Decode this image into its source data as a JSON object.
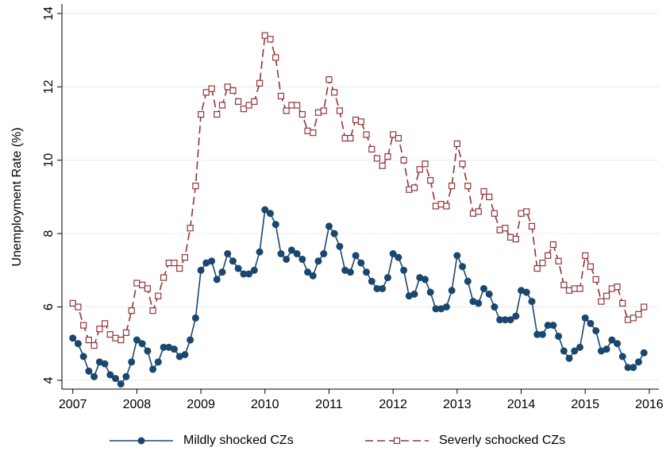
{
  "chart_data": {
    "type": "line",
    "y_label": "Unemployment Rate (%)",
    "x": [
      2007,
      2007.083,
      2007.167,
      2007.25,
      2007.333,
      2007.417,
      2007.5,
      2007.583,
      2007.667,
      2007.75,
      2007.833,
      2007.917,
      2008,
      2008.083,
      2008.167,
      2008.25,
      2008.333,
      2008.417,
      2008.5,
      2008.583,
      2008.667,
      2008.75,
      2008.833,
      2008.917,
      2009,
      2009.083,
      2009.167,
      2009.25,
      2009.333,
      2009.417,
      2009.5,
      2009.583,
      2009.667,
      2009.75,
      2009.833,
      2009.917,
      2010,
      2010.083,
      2010.167,
      2010.25,
      2010.333,
      2010.417,
      2010.5,
      2010.583,
      2010.667,
      2010.75,
      2010.833,
      2010.917,
      2011,
      2011.083,
      2011.167,
      2011.25,
      2011.333,
      2011.417,
      2011.5,
      2011.583,
      2011.667,
      2011.75,
      2011.833,
      2011.917,
      2012,
      2012.083,
      2012.167,
      2012.25,
      2012.333,
      2012.417,
      2012.5,
      2012.583,
      2012.667,
      2012.75,
      2012.833,
      2012.917,
      2013,
      2013.083,
      2013.167,
      2013.25,
      2013.333,
      2013.417,
      2013.5,
      2013.583,
      2013.667,
      2013.75,
      2013.833,
      2013.917,
      2014,
      2014.083,
      2014.167,
      2014.25,
      2014.333,
      2014.417,
      2014.5,
      2014.583,
      2014.667,
      2014.75,
      2014.833,
      2014.917,
      2015,
      2015.083,
      2015.167,
      2015.25,
      2015.333,
      2015.417,
      2015.5,
      2015.583,
      2015.667,
      2015.75,
      2015.833,
      2015.917
    ],
    "series": [
      {
        "name": "Mildly shocked CZs",
        "color": "#1a476f",
        "marker": "circle",
        "dash": false,
        "values": [
          5.15,
          5.0,
          4.65,
          4.25,
          4.1,
          4.5,
          4.45,
          4.15,
          4.05,
          3.9,
          4.1,
          4.5,
          5.1,
          5.0,
          4.8,
          4.3,
          4.5,
          4.9,
          4.9,
          4.85,
          4.65,
          4.7,
          5.1,
          5.7,
          7.0,
          7.2,
          7.25,
          6.75,
          6.95,
          7.45,
          7.25,
          7.05,
          6.9,
          6.9,
          7.0,
          7.5,
          8.65,
          8.55,
          8.25,
          7.45,
          7.3,
          7.55,
          7.45,
          7.3,
          6.95,
          6.85,
          7.25,
          7.45,
          8.2,
          8.0,
          7.65,
          7.0,
          6.95,
          7.4,
          7.2,
          6.95,
          6.7,
          6.5,
          6.5,
          6.8,
          7.45,
          7.35,
          7.0,
          6.3,
          6.35,
          6.8,
          6.75,
          6.4,
          5.95,
          5.95,
          6.0,
          6.45,
          7.4,
          7.1,
          6.7,
          6.15,
          6.1,
          6.5,
          6.35,
          6.0,
          5.65,
          5.65,
          5.65,
          5.75,
          6.45,
          6.4,
          6.15,
          5.25,
          5.25,
          5.5,
          5.5,
          5.2,
          4.8,
          4.6,
          4.8,
          4.9,
          5.7,
          5.55,
          5.35,
          4.8,
          4.85,
          5.1,
          5.0,
          4.65,
          4.35,
          4.35,
          4.5,
          4.75
        ]
      },
      {
        "name": "Severly schocked CZs",
        "color": "#90353b",
        "marker": "square",
        "dash": true,
        "values": [
          6.1,
          6.0,
          5.5,
          5.1,
          4.95,
          5.4,
          5.55,
          5.25,
          5.15,
          5.1,
          5.3,
          5.9,
          6.65,
          6.6,
          6.5,
          5.9,
          6.3,
          6.8,
          7.2,
          7.2,
          7.05,
          7.35,
          8.15,
          9.3,
          11.25,
          11.85,
          11.95,
          11.25,
          11.5,
          12.0,
          11.9,
          11.6,
          11.4,
          11.5,
          11.6,
          12.1,
          13.4,
          13.3,
          12.8,
          11.75,
          11.35,
          11.5,
          11.5,
          11.25,
          10.8,
          10.75,
          11.3,
          11.35,
          12.2,
          11.85,
          11.35,
          10.6,
          10.6,
          11.1,
          11.05,
          10.7,
          10.3,
          10.05,
          9.85,
          10.1,
          10.7,
          10.6,
          10.0,
          9.2,
          9.25,
          9.75,
          9.9,
          9.45,
          8.75,
          8.8,
          8.75,
          9.3,
          10.45,
          9.9,
          9.3,
          8.55,
          8.6,
          9.15,
          9.0,
          8.55,
          8.1,
          8.15,
          7.9,
          7.85,
          8.55,
          8.6,
          8.2,
          7.05,
          7.2,
          7.4,
          7.7,
          7.25,
          6.6,
          6.45,
          6.5,
          6.5,
          7.4,
          7.1,
          6.75,
          6.15,
          6.3,
          6.5,
          6.55,
          6.1,
          5.65,
          5.7,
          5.8,
          6.0
        ]
      }
    ],
    "xlim": [
      2006.83,
      2016.15
    ],
    "xticks": [
      2007,
      2008,
      2009,
      2010,
      2011,
      2012,
      2013,
      2014,
      2015,
      2016
    ],
    "ylim": [
      3.76,
      14.26
    ],
    "yticks": [
      4,
      6,
      8,
      10,
      12,
      14
    ],
    "grid": true,
    "legend": "bottom"
  }
}
